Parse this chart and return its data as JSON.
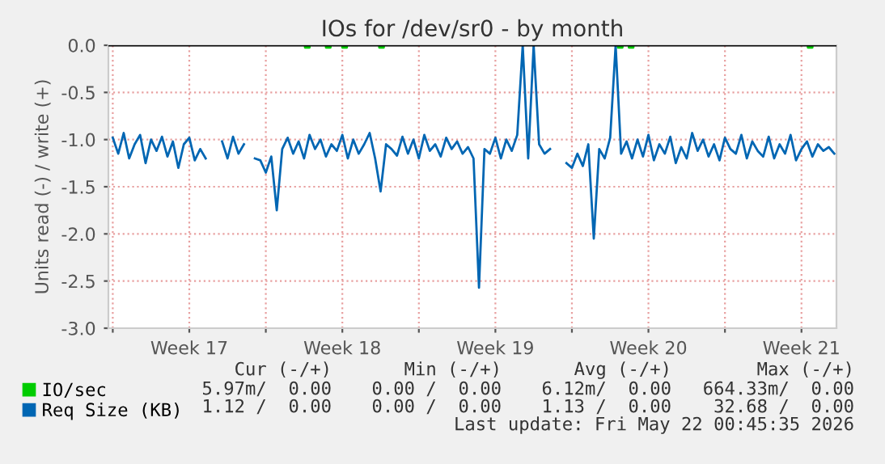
{
  "chart_data": {
    "type": "line",
    "title": "IOs for /dev/sr0 - by month",
    "ylabel": "Units read (-) / write (+)",
    "xlim": [
      "2026-04-18T17:12",
      "2026-05-22T00:24"
    ],
    "ylim": [
      -3.0,
      0.0
    ],
    "xticks": [
      {
        "value": "2026-04-18T22:00",
        "label": null
      },
      {
        "value": "2026-04-22T10:00",
        "label": "Week 17"
      },
      {
        "value": "2026-04-25T22:00",
        "label": null
      },
      {
        "value": "2026-04-29T10:00",
        "label": "Week 18"
      },
      {
        "value": "2026-05-02T22:00",
        "label": null
      },
      {
        "value": "2026-05-06T10:00",
        "label": "Week 19"
      },
      {
        "value": "2026-05-09T22:00",
        "label": null
      },
      {
        "value": "2026-05-13T10:00",
        "label": "Week 20"
      },
      {
        "value": "2026-05-16T22:00",
        "label": null
      },
      {
        "value": "2026-05-20T10:00",
        "label": "Week 21"
      }
    ],
    "yticks": [
      {
        "value": -3.0,
        "label": "-3.0"
      },
      {
        "value": -2.5,
        "label": "-2.5"
      },
      {
        "value": -2.0,
        "label": "-2.0"
      },
      {
        "value": -1.5,
        "label": "-1.5"
      },
      {
        "value": -1.0,
        "label": "-1.0"
      },
      {
        "value": -0.5,
        "label": "-0.5"
      },
      {
        "value": 0.0,
        "label": "0.0"
      }
    ],
    "grid": true,
    "legend": "bottom",
    "ref_lines": [
      {
        "axis": "y",
        "value": 0.0,
        "color": "#000000"
      }
    ],
    "series": [
      {
        "name": "IO/sec",
        "type": "scatter",
        "color": "#00cc00",
        "x": [
          "2026-04-27T19:30",
          "2026-04-28T18:30",
          "2026-04-29T12:30",
          "2026-05-01T05:00",
          "2026-05-12T03:00",
          "2026-05-12T15:00",
          "2026-05-20T19:30"
        ],
        "values": [
          0.0,
          0.0,
          0.0,
          0.0,
          0.0,
          0.0,
          0.0
        ]
      },
      {
        "name": "Req Size (KB)",
        "color": "#0066b3",
        "x": [
          "2026-04-18T22:00",
          "2026-04-19T04:00",
          "2026-04-19T10:00",
          "2026-04-19T16:00",
          "2026-04-19T22:00",
          "2026-04-20T04:00",
          "2026-04-20T10:00",
          "2026-04-20T16:00",
          "2026-04-20T22:00",
          "2026-04-21T04:00",
          "2026-04-21T10:00",
          "2026-04-21T16:00",
          "2026-04-21T22:00",
          "2026-04-22T04:00",
          "2026-04-22T10:00",
          "2026-04-22T16:00",
          "2026-04-22T22:00",
          "2026-04-23T04:00",
          "2026-04-23T10:00",
          "2026-04-23T16:00",
          "2026-04-23T22:00",
          "2026-04-24T04:00",
          "2026-04-24T10:00",
          "2026-04-24T16:00",
          "2026-04-24T22:00",
          "2026-04-25T04:00",
          "2026-04-25T10:00",
          "2026-04-25T16:00",
          "2026-04-25T22:00",
          "2026-04-26T04:00",
          "2026-04-26T10:00",
          "2026-04-26T16:00",
          "2026-04-26T22:00",
          "2026-04-27T04:00",
          "2026-04-27T10:00",
          "2026-04-27T16:00",
          "2026-04-27T22:00",
          "2026-04-28T04:00",
          "2026-04-28T10:00",
          "2026-04-28T16:00",
          "2026-04-28T22:00",
          "2026-04-29T04:00",
          "2026-04-29T10:00",
          "2026-04-29T16:00",
          "2026-04-29T22:00",
          "2026-04-30T04:00",
          "2026-04-30T10:00",
          "2026-04-30T16:00",
          "2026-04-30T22:00",
          "2026-05-01T04:00",
          "2026-05-01T10:00",
          "2026-05-01T16:00",
          "2026-05-01T22:00",
          "2026-05-02T04:00",
          "2026-05-02T10:00",
          "2026-05-02T16:00",
          "2026-05-02T22:00",
          "2026-05-03T04:00",
          "2026-05-03T10:00",
          "2026-05-03T16:00",
          "2026-05-03T22:00",
          "2026-05-04T04:00",
          "2026-05-04T10:00",
          "2026-05-04T16:00",
          "2026-05-04T22:00",
          "2026-05-05T04:00",
          "2026-05-05T10:00",
          "2026-05-05T16:00",
          "2026-05-05T22:00",
          "2026-05-06T04:00",
          "2026-05-06T10:00",
          "2026-05-06T16:00",
          "2026-05-06T22:00",
          "2026-05-07T04:00",
          "2026-05-07T10:00",
          "2026-05-07T16:00",
          "2026-05-07T22:00",
          "2026-05-08T04:00",
          "2026-05-08T10:00",
          "2026-05-08T16:00",
          "2026-05-08T22:00",
          "2026-05-09T04:00",
          "2026-05-09T10:00",
          "2026-05-09T16:00",
          "2026-05-09T22:00",
          "2026-05-10T04:00",
          "2026-05-10T10:00",
          "2026-05-10T16:00",
          "2026-05-10T22:00",
          "2026-05-11T04:00",
          "2026-05-11T10:00",
          "2026-05-11T16:00",
          "2026-05-11T22:00",
          "2026-05-12T04:00",
          "2026-05-12T10:00",
          "2026-05-12T16:00",
          "2026-05-12T22:00",
          "2026-05-13T04:00",
          "2026-05-13T10:00",
          "2026-05-13T16:00",
          "2026-05-13T22:00",
          "2026-05-14T04:00",
          "2026-05-14T10:00",
          "2026-05-14T16:00",
          "2026-05-14T22:00",
          "2026-05-15T04:00",
          "2026-05-15T10:00",
          "2026-05-15T16:00",
          "2026-05-15T22:00",
          "2026-05-16T04:00",
          "2026-05-16T10:00",
          "2026-05-16T16:00",
          "2026-05-16T22:00",
          "2026-05-17T04:00",
          "2026-05-17T10:00",
          "2026-05-17T16:00",
          "2026-05-17T22:00",
          "2026-05-18T04:00",
          "2026-05-18T10:00",
          "2026-05-18T16:00",
          "2026-05-18T22:00",
          "2026-05-19T04:00",
          "2026-05-19T10:00",
          "2026-05-19T16:00",
          "2026-05-19T22:00",
          "2026-05-20T04:00",
          "2026-05-20T10:00",
          "2026-05-20T16:00",
          "2026-05-20T22:00",
          "2026-05-21T04:00",
          "2026-05-21T10:00",
          "2026-05-21T16:00",
          "2026-05-21T22:00"
        ],
        "values": [
          -0.98,
          -1.15,
          -0.93,
          -1.2,
          -1.05,
          -0.95,
          -1.25,
          -1.0,
          -1.12,
          -0.97,
          -1.18,
          -1.02,
          -1.3,
          -1.05,
          -0.98,
          -1.22,
          -1.1,
          -1.2,
          null,
          null,
          -1.02,
          -1.2,
          -0.97,
          -1.15,
          -1.05,
          null,
          -1.2,
          -1.22,
          -1.35,
          -1.18,
          -1.75,
          -1.1,
          -0.98,
          -1.15,
          -1.02,
          -1.2,
          -0.95,
          -1.1,
          -1.0,
          -1.18,
          -1.05,
          -1.12,
          -0.95,
          -1.2,
          -1.0,
          -1.15,
          -1.05,
          -0.93,
          -1.2,
          -1.55,
          -1.05,
          -1.1,
          -1.17,
          -0.97,
          -1.15,
          -1.0,
          -1.2,
          -0.95,
          -1.12,
          -1.05,
          -1.18,
          -0.98,
          -1.1,
          -1.02,
          -1.15,
          -1.08,
          -1.2,
          -2.57,
          -1.1,
          -1.15,
          -0.98,
          -1.2,
          -1.0,
          -1.12,
          -0.95,
          0.0,
          -1.2,
          0.0,
          -1.05,
          -1.15,
          -1.1,
          null,
          null,
          -1.25,
          -1.3,
          -1.15,
          -1.28,
          -1.05,
          -2.05,
          -1.1,
          -1.2,
          -0.98,
          0.0,
          -1.15,
          -1.02,
          -1.2,
          -1.0,
          -1.18,
          -0.95,
          -1.22,
          -1.05,
          -1.15,
          -0.97,
          -1.25,
          -1.08,
          -1.2,
          -0.93,
          -1.12,
          -1.0,
          -1.18,
          -1.05,
          -1.22,
          -0.98,
          -1.1,
          -1.15,
          -0.95,
          -1.2,
          -1.02,
          -1.12,
          -1.18,
          -0.97,
          -1.2,
          -1.05,
          -1.15,
          -0.95,
          -1.22,
          -1.1,
          -1.02,
          -1.18,
          -1.05,
          -1.12,
          -1.08,
          -1.15
        ]
      }
    ],
    "annotations": [
      "Cur (-/+)",
      "Min (-/+)",
      "Avg (-/+)",
      "Max (-/+)",
      "5.97m/  0.00",
      "0.00 /  0.00",
      "6.12m/  0.00",
      "664.33m/  0.00",
      "1.12 /  0.00",
      "0.00 /  0.00",
      "1.13 /  0.00",
      "32.68 /  0.00",
      "Last update: Fri May 22 00:45:35 2026"
    ]
  }
}
